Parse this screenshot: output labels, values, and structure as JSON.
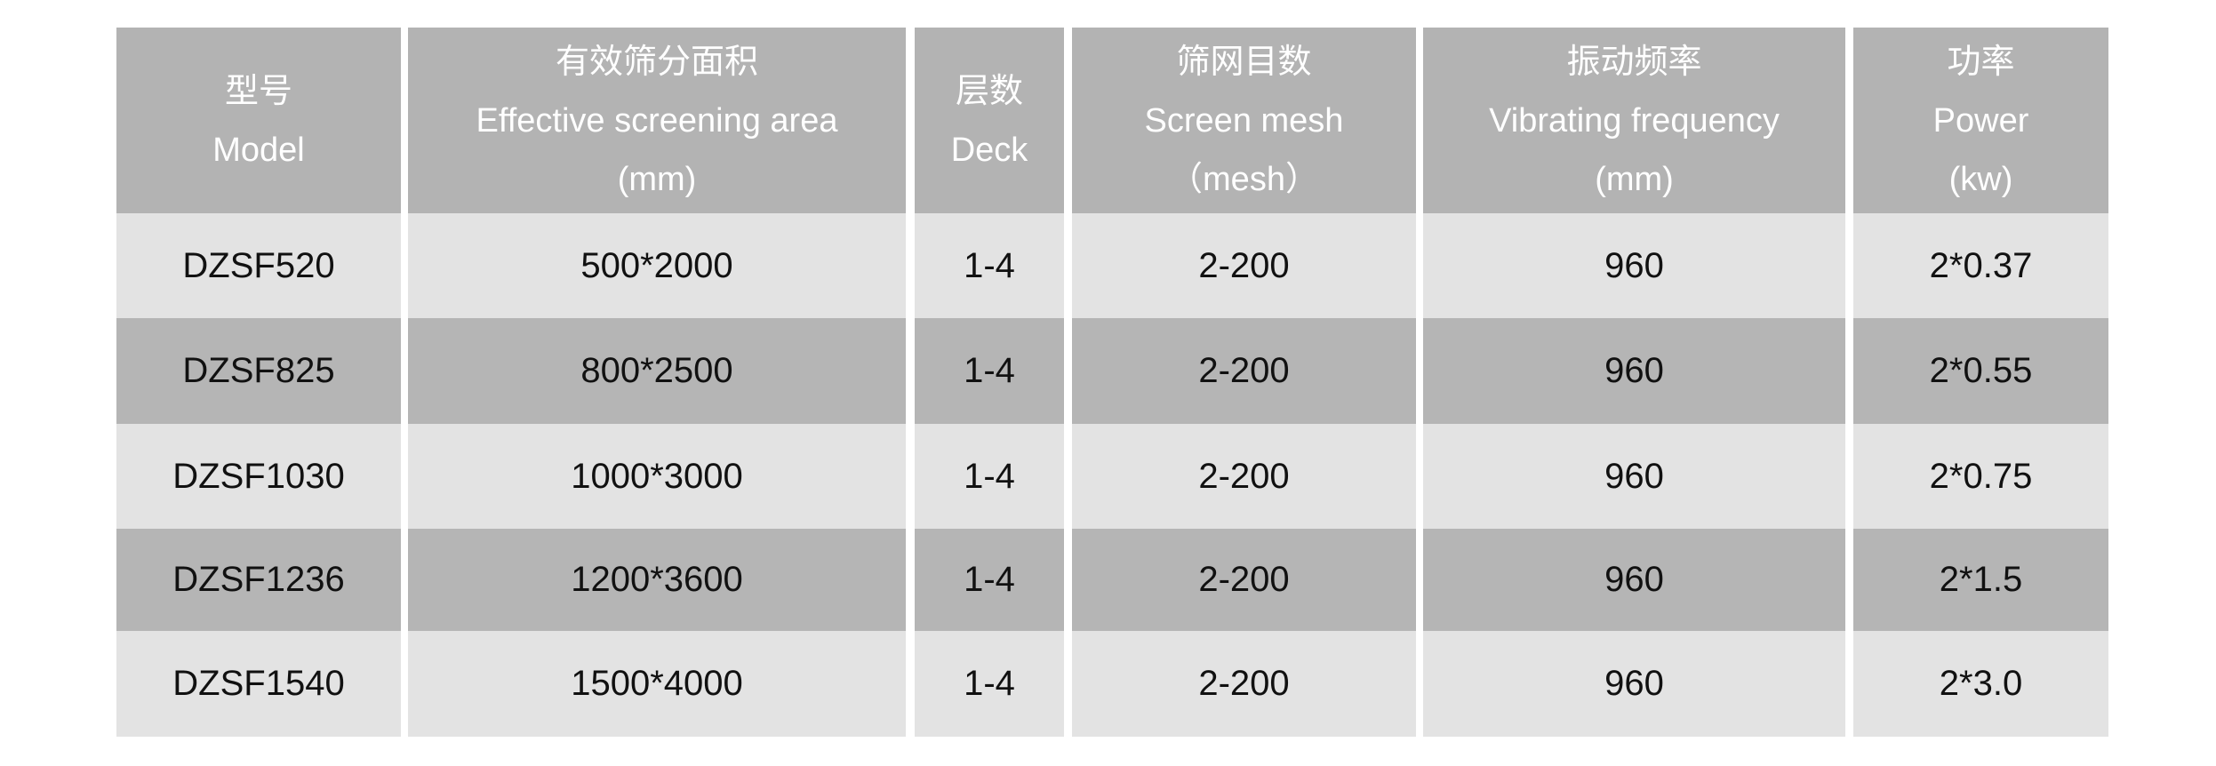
{
  "columns": [
    {
      "zh": "型号",
      "en": "Model",
      "unit": ""
    },
    {
      "zh": "有效筛分面积",
      "en": "Effective screening area",
      "unit": "(mm)"
    },
    {
      "zh": "层数",
      "en": "Deck",
      "unit": ""
    },
    {
      "zh": "筛网目数",
      "en": "Screen mesh",
      "unit": "（mesh）"
    },
    {
      "zh": "振动频率",
      "en": "Vibrating frequency",
      "unit": "(mm)"
    },
    {
      "zh": "功率",
      "en": "Power",
      "unit": "(kw)"
    }
  ],
  "rows": [
    [
      "DZSF520",
      "500*2000",
      "1-4",
      "2-200",
      "960",
      "2*0.37"
    ],
    [
      "DZSF825",
      "800*2500",
      "1-4",
      "2-200",
      "960",
      "2*0.55"
    ],
    [
      "DZSF1030",
      "1000*3000",
      "1-4",
      "2-200",
      "960",
      "2*0.75"
    ],
    [
      "DZSF1236",
      "1200*3600",
      "1-4",
      "2-200",
      "960",
      "2*1.5"
    ],
    [
      "DZSF1540",
      "1500*4000",
      "1-4",
      "2-200",
      "960",
      "2*3.0"
    ]
  ],
  "colors": {
    "header_bg": "#b3b3b3",
    "row_light": "#e3e3e3",
    "row_dark": "#b5b5b5",
    "header_text": "#ffffff"
  }
}
